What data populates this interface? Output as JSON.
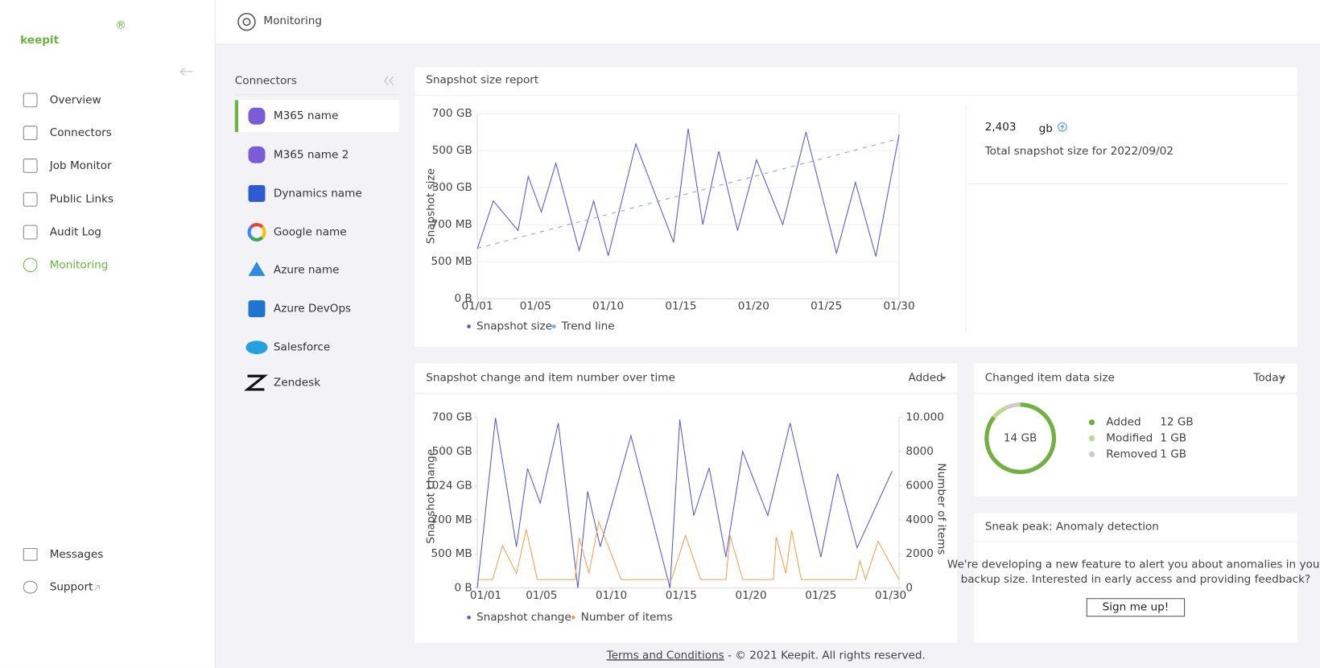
{
  "sidebar": {
    "logo": "keepit",
    "logo_mark": "®",
    "nav": [
      "Overview",
      "Connectors",
      "Job Monitor",
      "Public Links",
      "Audit Log",
      "Monitoring"
    ],
    "active": 5,
    "bottom_nav": [
      "Messages",
      "Support"
    ]
  },
  "header": {
    "title": "Monitoring"
  },
  "connectors": {
    "title": "Connectors",
    "selected": 0,
    "items": [
      "M365 name",
      "M365 name 2",
      "Dynamics name",
      "Google name",
      "Azure name",
      "Azure DevOps",
      "Salesforce",
      "Zendesk"
    ]
  },
  "summary": {
    "value": "2,403",
    "unit": "gb",
    "caption": "Total snapshot size for 2022/09/02"
  },
  "anomaly": {
    "title": "Sneak peak: Anomaly detection",
    "lines": [
      "We're developing a new feature to alert you about anomalies in your",
      "backup size. Interested in early access and providing feedback?"
    ],
    "button": "Sign me up!"
  },
  "footer": {
    "link": "Terms and Conditions",
    "text": " - © 2021 Keepit. All rights reserved."
  },
  "chart_data": [
    {
      "type": "line",
      "title": "Snapshot size report",
      "y_label": "Snapshot size",
      "xlim": [
        1,
        30
      ],
      "xticks": [
        {
          "value": 1,
          "label": "01/01"
        },
        {
          "value": 5,
          "label": "01/05"
        },
        {
          "value": 10,
          "label": "01/10"
        },
        {
          "value": 15,
          "label": "01/15"
        },
        {
          "value": 20,
          "label": "01/20"
        },
        {
          "value": 25,
          "label": "01/25"
        },
        {
          "value": 30,
          "label": "01/30"
        }
      ],
      "ylim": [
        0,
        5
      ],
      "yticks": [
        {
          "value": 0,
          "label": "0 B"
        },
        {
          "value": 1,
          "label": "500 MB"
        },
        {
          "value": 2,
          "label": "700 MB"
        },
        {
          "value": 3,
          "label": "300 GB"
        },
        {
          "value": 4,
          "label": "500 GB"
        },
        {
          "value": 5,
          "label": "700 GB"
        }
      ],
      "grid": true,
      "series": [
        {
          "name": "Snapshot size",
          "color": "#5558c8",
          "x": [
            1,
            2.1,
            3.8,
            4.5,
            5.4,
            6.4,
            8.0,
            9.0,
            10.0,
            11.9,
            14.5,
            15.5,
            16.5,
            17.6,
            18.9,
            20.2,
            22.0,
            23.6,
            25.7,
            27.0,
            28.4,
            30
          ],
          "values": [
            1.34,
            2.64,
            1.84,
            3.3,
            2.34,
            3.66,
            1.3,
            2.64,
            1.16,
            4.18,
            1.52,
            4.59,
            2.0,
            3.98,
            1.84,
            3.75,
            2.0,
            4.5,
            1.23,
            3.14,
            1.14,
            4.43
          ]
        },
        {
          "name": "Trend line",
          "color": "#6aaee0",
          "dashed": true,
          "x": [
            1,
            30
          ],
          "values": [
            1.36,
            4.32
          ]
        }
      ]
    },
    {
      "type": "line",
      "title": "Snapshot change and item number over time",
      "dropdown": "Added",
      "y_label": "Snapshot change",
      "y2_label": "Number of items",
      "xlim": [
        0.4,
        30.6
      ],
      "xticks": [
        {
          "value": 1,
          "label": "01/01"
        },
        {
          "value": 5,
          "label": "01/05"
        },
        {
          "value": 10,
          "label": "01/10"
        },
        {
          "value": 15,
          "label": "01/15"
        },
        {
          "value": 20,
          "label": "01/20"
        },
        {
          "value": 25,
          "label": "01/25"
        },
        {
          "value": 30,
          "label": "01/30"
        }
      ],
      "ylim": [
        0,
        5
      ],
      "yticks": [
        {
          "value": 0,
          "label": "0 B"
        },
        {
          "value": 1,
          "label": "500 MB"
        },
        {
          "value": 2,
          "label": "700 MB"
        },
        {
          "value": 3,
          "label": "1024 GB"
        },
        {
          "value": 4,
          "label": "500 GB"
        },
        {
          "value": 5,
          "label": "700 GB"
        }
      ],
      "y2lim": [
        0,
        10000
      ],
      "y2ticks": [
        0,
        2000,
        4000,
        6000,
        8000,
        {
          "value": 10000,
          "label": "10.000"
        }
      ],
      "grid": false,
      "series": [
        {
          "name": "Snapshot change",
          "color": "#5558c8",
          "x": [
            0.4,
            1.7,
            3.2,
            4.0,
            4.9,
            6.2,
            7.6,
            8.3,
            9.2,
            11.4,
            14.2,
            14.9,
            15.9,
            17.0,
            18.2,
            19.4,
            21.2,
            22.8,
            25.0,
            26.2,
            27.6,
            30.1
          ],
          "values": [
            0,
            4.98,
            1.21,
            3.5,
            2.49,
            4.83,
            0,
            2.83,
            1.21,
            4.46,
            0,
            4.93,
            2.12,
            3.52,
            0.91,
            4.0,
            2.12,
            4.83,
            0.91,
            3.35,
            1.18,
            3.42
          ]
        },
        {
          "name": "Number of items",
          "color": "#f0a24e",
          "axis": "y2",
          "x": [
            0.4,
            1.5,
            2.2,
            3.2,
            3.9,
            4.7,
            7.4,
            7.7,
            8.4,
            9.1,
            10.7,
            14.3,
            15.3,
            16.4,
            18.2,
            18.5,
            19.4,
            21.6,
            21.8,
            22.5,
            22.9,
            23.6,
            27.5,
            27.8,
            28.2,
            29.1,
            30.6
          ],
          "values": [
            500,
            500,
            2490,
            850,
            3430,
            500,
            500,
            2940,
            850,
            3880,
            500,
            500,
            3080,
            500,
            500,
            3080,
            500,
            500,
            2990,
            850,
            3380,
            500,
            500,
            1590,
            500,
            2740,
            500
          ]
        }
      ]
    },
    {
      "type": "donut",
      "title": "Changed item data size",
      "dropdown": "Today",
      "center_label": "14 GB",
      "categories": [
        "Added",
        "Modified",
        "Removed"
      ],
      "values": [
        12,
        1,
        1
      ],
      "value_labels": [
        "12 GB",
        "1 GB",
        "1 GB"
      ],
      "colors": [
        "#72b043",
        "#bcd98f",
        "#cccccc"
      ]
    }
  ]
}
